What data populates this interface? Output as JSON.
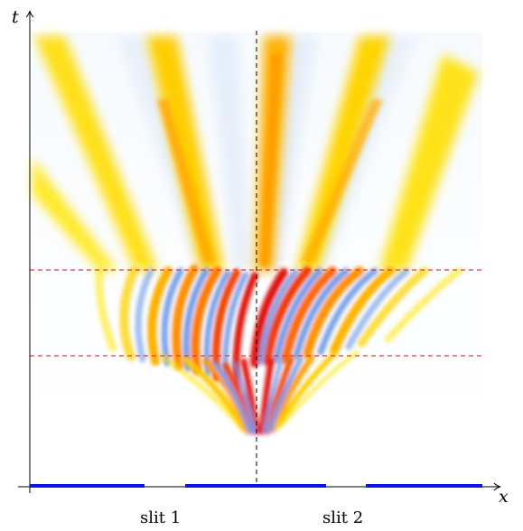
{
  "axes": {
    "x_label": "x",
    "y_label": "t"
  },
  "slits": {
    "labels": [
      "slit 1",
      "slit 2"
    ],
    "barrier_color": "#0a14e6"
  },
  "colors": {
    "wave_peak": "#e0140e",
    "wave_mid": "#ff9a00",
    "wave_bright": "#ffe600",
    "trough": "#6f9be8",
    "trough_light": "#cfe2f6",
    "background_tint": "#f2f8fd",
    "dashed_vertical": "#000000",
    "dashed_horizontal": "#e03c3c"
  },
  "legend": "none",
  "grid": false
}
